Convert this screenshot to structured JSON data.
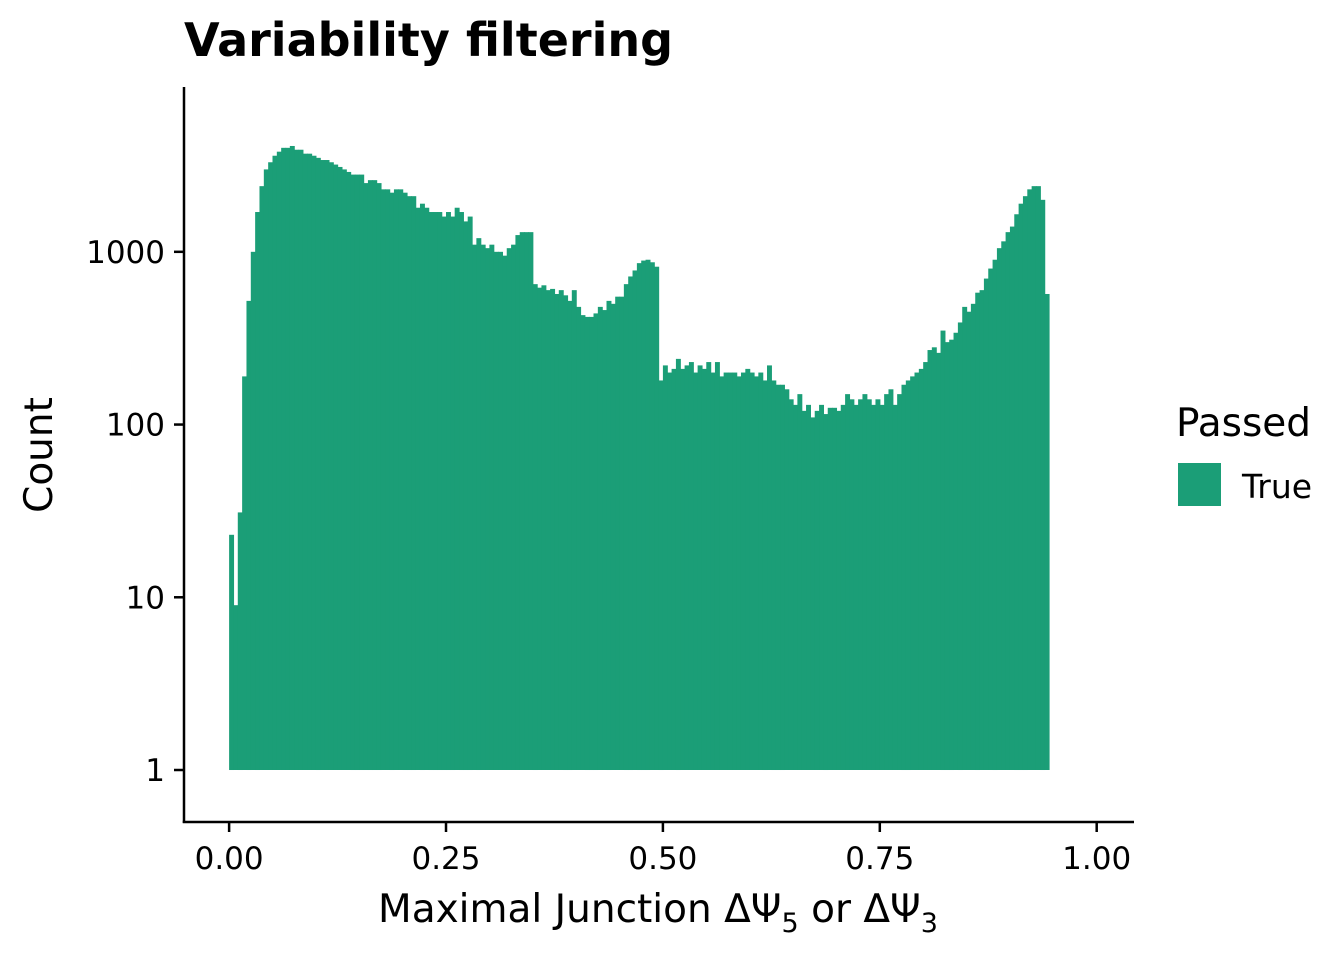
{
  "chart_data": {
    "type": "bar",
    "title": "Variability filtering",
    "xlabel": {
      "prefix": "Maximal Junction ΔΨ",
      "sub1": "5",
      "middle": " or ΔΨ",
      "sub2": "3"
    },
    "ylabel": "Count",
    "y_scale": "log10",
    "xlim": [
      -0.052,
      1.043
    ],
    "ylim": [
      0.5,
      9000
    ],
    "x_ticks": [
      {
        "value": 0,
        "label": "0.00"
      },
      {
        "value": 0.25,
        "label": "0.25"
      },
      {
        "value": 0.5,
        "label": "0.50"
      },
      {
        "value": 0.75,
        "label": "0.75"
      },
      {
        "value": 1,
        "label": "1.00"
      }
    ],
    "y_ticks": [
      {
        "value": 1,
        "label": "1"
      },
      {
        "value": 10,
        "label": "10"
      },
      {
        "value": 100,
        "label": "100"
      },
      {
        "value": 1000,
        "label": "1000"
      }
    ],
    "bin_width": 0.005,
    "bin_start": 0.0,
    "series": [
      {
        "name": "True",
        "color": "#1b9e77",
        "values": [
          23,
          9,
          31,
          190,
          520,
          1000,
          1700,
          2400,
          3000,
          3300,
          3600,
          3800,
          4000,
          4000,
          4100,
          3900,
          3900,
          3700,
          3700,
          3600,
          3500,
          3400,
          3400,
          3300,
          3200,
          3100,
          3000,
          2900,
          2800,
          2800,
          2800,
          2500,
          2600,
          2600,
          2500,
          2300,
          2300,
          2200,
          2300,
          2300,
          2200,
          2100,
          2100,
          1800,
          1900,
          1800,
          1700,
          1700,
          1700,
          1600,
          1700,
          1600,
          1800,
          1700,
          1500,
          1600,
          1100,
          1200,
          1100,
          1050,
          1100,
          1000,
          1000,
          950,
          1050,
          1100,
          1250,
          1300,
          1300,
          1300,
          650,
          620,
          640,
          600,
          610,
          570,
          600,
          560,
          520,
          600,
          480,
          430,
          420,
          420,
          440,
          480,
          460,
          520,
          500,
          550,
          550,
          650,
          720,
          780,
          860,
          890,
          900,
          870,
          820,
          180,
          220,
          200,
          210,
          240,
          210,
          220,
          230,
          200,
          220,
          210,
          230,
          200,
          230,
          190,
          200,
          200,
          200,
          190,
          200,
          210,
          200,
          190,
          200,
          180,
          220,
          180,
          170,
          170,
          160,
          140,
          130,
          150,
          120,
          130,
          110,
          120,
          130,
          115,
          125,
          125,
          120,
          130,
          150,
          140,
          130,
          140,
          150,
          140,
          130,
          140,
          130,
          150,
          160,
          130,
          150,
          170,
          180,
          190,
          200,
          210,
          230,
          270,
          280,
          260,
          350,
          300,
          310,
          340,
          390,
          480,
          450,
          500,
          580,
          600,
          700,
          800,
          900,
          1050,
          1150,
          1300,
          1400,
          1650,
          1900,
          2100,
          2300,
          2400,
          2400,
          2000,
          570
        ]
      }
    ],
    "legend": {
      "title": "Passed",
      "position": "right",
      "items": [
        {
          "label": "True",
          "color": "#1b9e77"
        }
      ]
    },
    "grid": false
  }
}
